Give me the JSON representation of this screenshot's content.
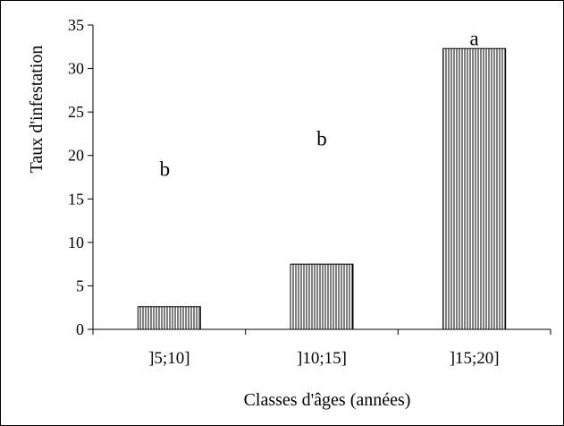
{
  "chart_data": {
    "type": "bar",
    "categories": [
      "]5;10]",
      "]10;15]",
      "]15;20]"
    ],
    "values": [
      2.6,
      7.5,
      32.3
    ],
    "annotations": [
      "b",
      "b",
      "a"
    ],
    "annotation_values": [
      18.5,
      22.0,
      33.5
    ],
    "xlabel": "Classes d'âges (années)",
    "ylabel": "Taux d'infestation",
    "ylim": [
      0,
      35
    ],
    "yticks": [
      0,
      5,
      10,
      15,
      20,
      25,
      30,
      35
    ],
    "grid": false,
    "legend": "none",
    "bar_fill": "vertical-hatch",
    "colors": {
      "bar_stroke": "#000000",
      "hatch": "#000000",
      "background": "#ffffff",
      "frame": "#000000"
    }
  }
}
